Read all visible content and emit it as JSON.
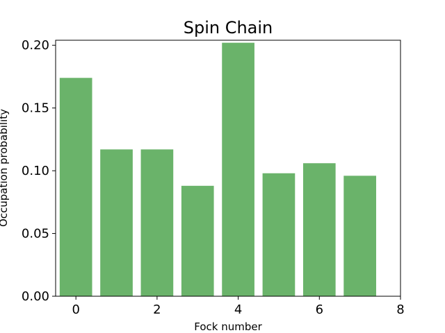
{
  "chart_data": {
    "type": "bar",
    "title": "Spin Chain",
    "xlabel": "Fock number",
    "ylabel": "Occupation probability",
    "x": [
      0,
      1,
      2,
      3,
      4,
      5,
      6,
      7
    ],
    "values": [
      0.174,
      0.117,
      0.117,
      0.088,
      0.202,
      0.098,
      0.106,
      0.096
    ],
    "xlim": [
      -0.5,
      8
    ],
    "ylim": [
      0,
      0.204
    ],
    "xticks": [
      0,
      2,
      4,
      6,
      8
    ],
    "xtick_labels": [
      "0",
      "2",
      "4",
      "6",
      "8"
    ],
    "yticks": [
      0,
      0.05,
      0.1,
      0.15,
      0.2
    ],
    "ytick_labels": [
      "0.00",
      "0.05",
      "0.10",
      "0.15",
      "0.20"
    ],
    "bar_color": "#6ab36a",
    "grid": false,
    "legend": false
  }
}
